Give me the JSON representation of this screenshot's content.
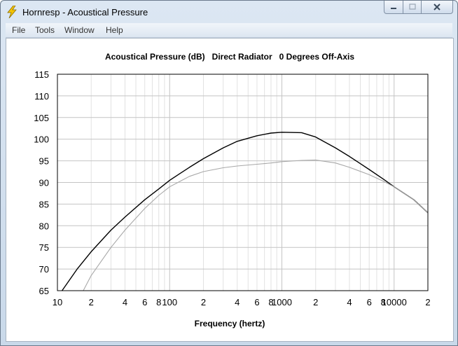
{
  "window": {
    "title": "Hornresp - Acoustical Pressure",
    "icon": "lightning-icon",
    "buttons": {
      "minimize": "minimize-icon",
      "maximize": "maximize-icon",
      "close": "close-icon"
    }
  },
  "menu": {
    "items": [
      "File",
      "Tools",
      "Window",
      "Help"
    ]
  },
  "chart_data": {
    "type": "line",
    "title": "Acoustical Pressure (dB)   Direct Radiator   0 Degrees Off-Axis",
    "xlabel": "Frequency (hertz)",
    "ylabel": "",
    "xscale": "log",
    "xlim": [
      10,
      20000
    ],
    "ylim": [
      65,
      115
    ],
    "yticks": [
      "115",
      "110",
      "105",
      "100",
      "95",
      "90",
      "85",
      "80",
      "75",
      "70",
      "65"
    ],
    "xticks": [
      {
        "v": 10,
        "t": "10"
      },
      {
        "v": 20,
        "t": "2"
      },
      {
        "v": 40,
        "t": "4"
      },
      {
        "v": 60,
        "t": "6"
      },
      {
        "v": 80,
        "t": "8"
      },
      {
        "v": 100,
        "t": "100"
      },
      {
        "v": 200,
        "t": "2"
      },
      {
        "v": 400,
        "t": "4"
      },
      {
        "v": 600,
        "t": "6"
      },
      {
        "v": 800,
        "t": "8"
      },
      {
        "v": 1000,
        "t": "1000"
      },
      {
        "v": 2000,
        "t": "2"
      },
      {
        "v": 4000,
        "t": "4"
      },
      {
        "v": 6000,
        "t": "6"
      },
      {
        "v": 8000,
        "t": "8"
      },
      {
        "v": 10000,
        "t": "10000"
      },
      {
        "v": 20000,
        "t": "2"
      }
    ],
    "grid": true,
    "series": [
      {
        "color": "#000000",
        "x": [
          11,
          15,
          20,
          30,
          40,
          60,
          80,
          100,
          150,
          200,
          300,
          400,
          600,
          800,
          1000,
          1500,
          2000,
          3000,
          4000,
          6000,
          8000,
          10000,
          15000,
          20000
        ],
        "y": [
          65,
          70,
          74,
          79,
          82,
          86,
          88.5,
          90.5,
          93.5,
          95.5,
          98,
          99.5,
          100.8,
          101.4,
          101.6,
          101.5,
          100.5,
          98,
          96,
          93,
          90.8,
          89,
          86,
          83
        ]
      },
      {
        "color": "#a8a8a8",
        "x": [
          17,
          20,
          30,
          40,
          60,
          80,
          100,
          150,
          200,
          300,
          400,
          600,
          800,
          1000,
          1500,
          2000,
          3000,
          4000,
          6000,
          8000,
          10000,
          15000,
          20000
        ],
        "y": [
          65,
          68.5,
          75,
          79,
          84,
          87,
          89,
          91.4,
          92.5,
          93.4,
          93.8,
          94.2,
          94.5,
          94.8,
          95.1,
          95.2,
          94.5,
          93.5,
          91.8,
          90.3,
          89,
          86,
          83
        ]
      }
    ]
  }
}
